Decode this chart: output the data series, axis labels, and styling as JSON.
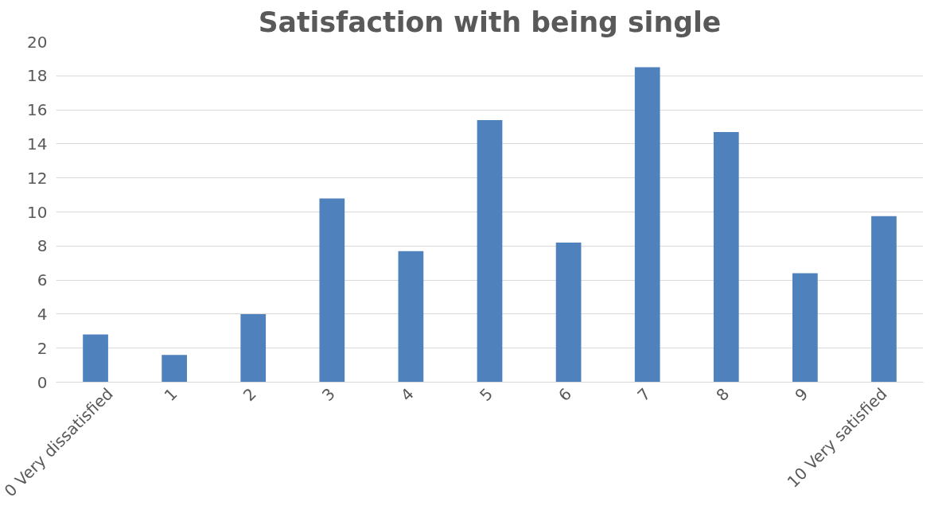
{
  "chart_data": {
    "type": "bar",
    "title": "Satisfaction with being single",
    "categories": [
      "0 Very dissatisfied",
      "1",
      "2",
      "3",
      "4",
      "5",
      "6",
      "7",
      "8",
      "9",
      "10 Very satisfied"
    ],
    "values": [
      2.8,
      1.6,
      4.0,
      10.8,
      7.7,
      15.4,
      8.2,
      18.5,
      14.7,
      6.4,
      9.75
    ],
    "color": "#4f81bd",
    "ylim": [
      0,
      20
    ],
    "yticks": [
      0,
      2,
      4,
      6,
      8,
      10,
      12,
      14,
      16,
      18,
      20
    ],
    "grid": "y"
  }
}
